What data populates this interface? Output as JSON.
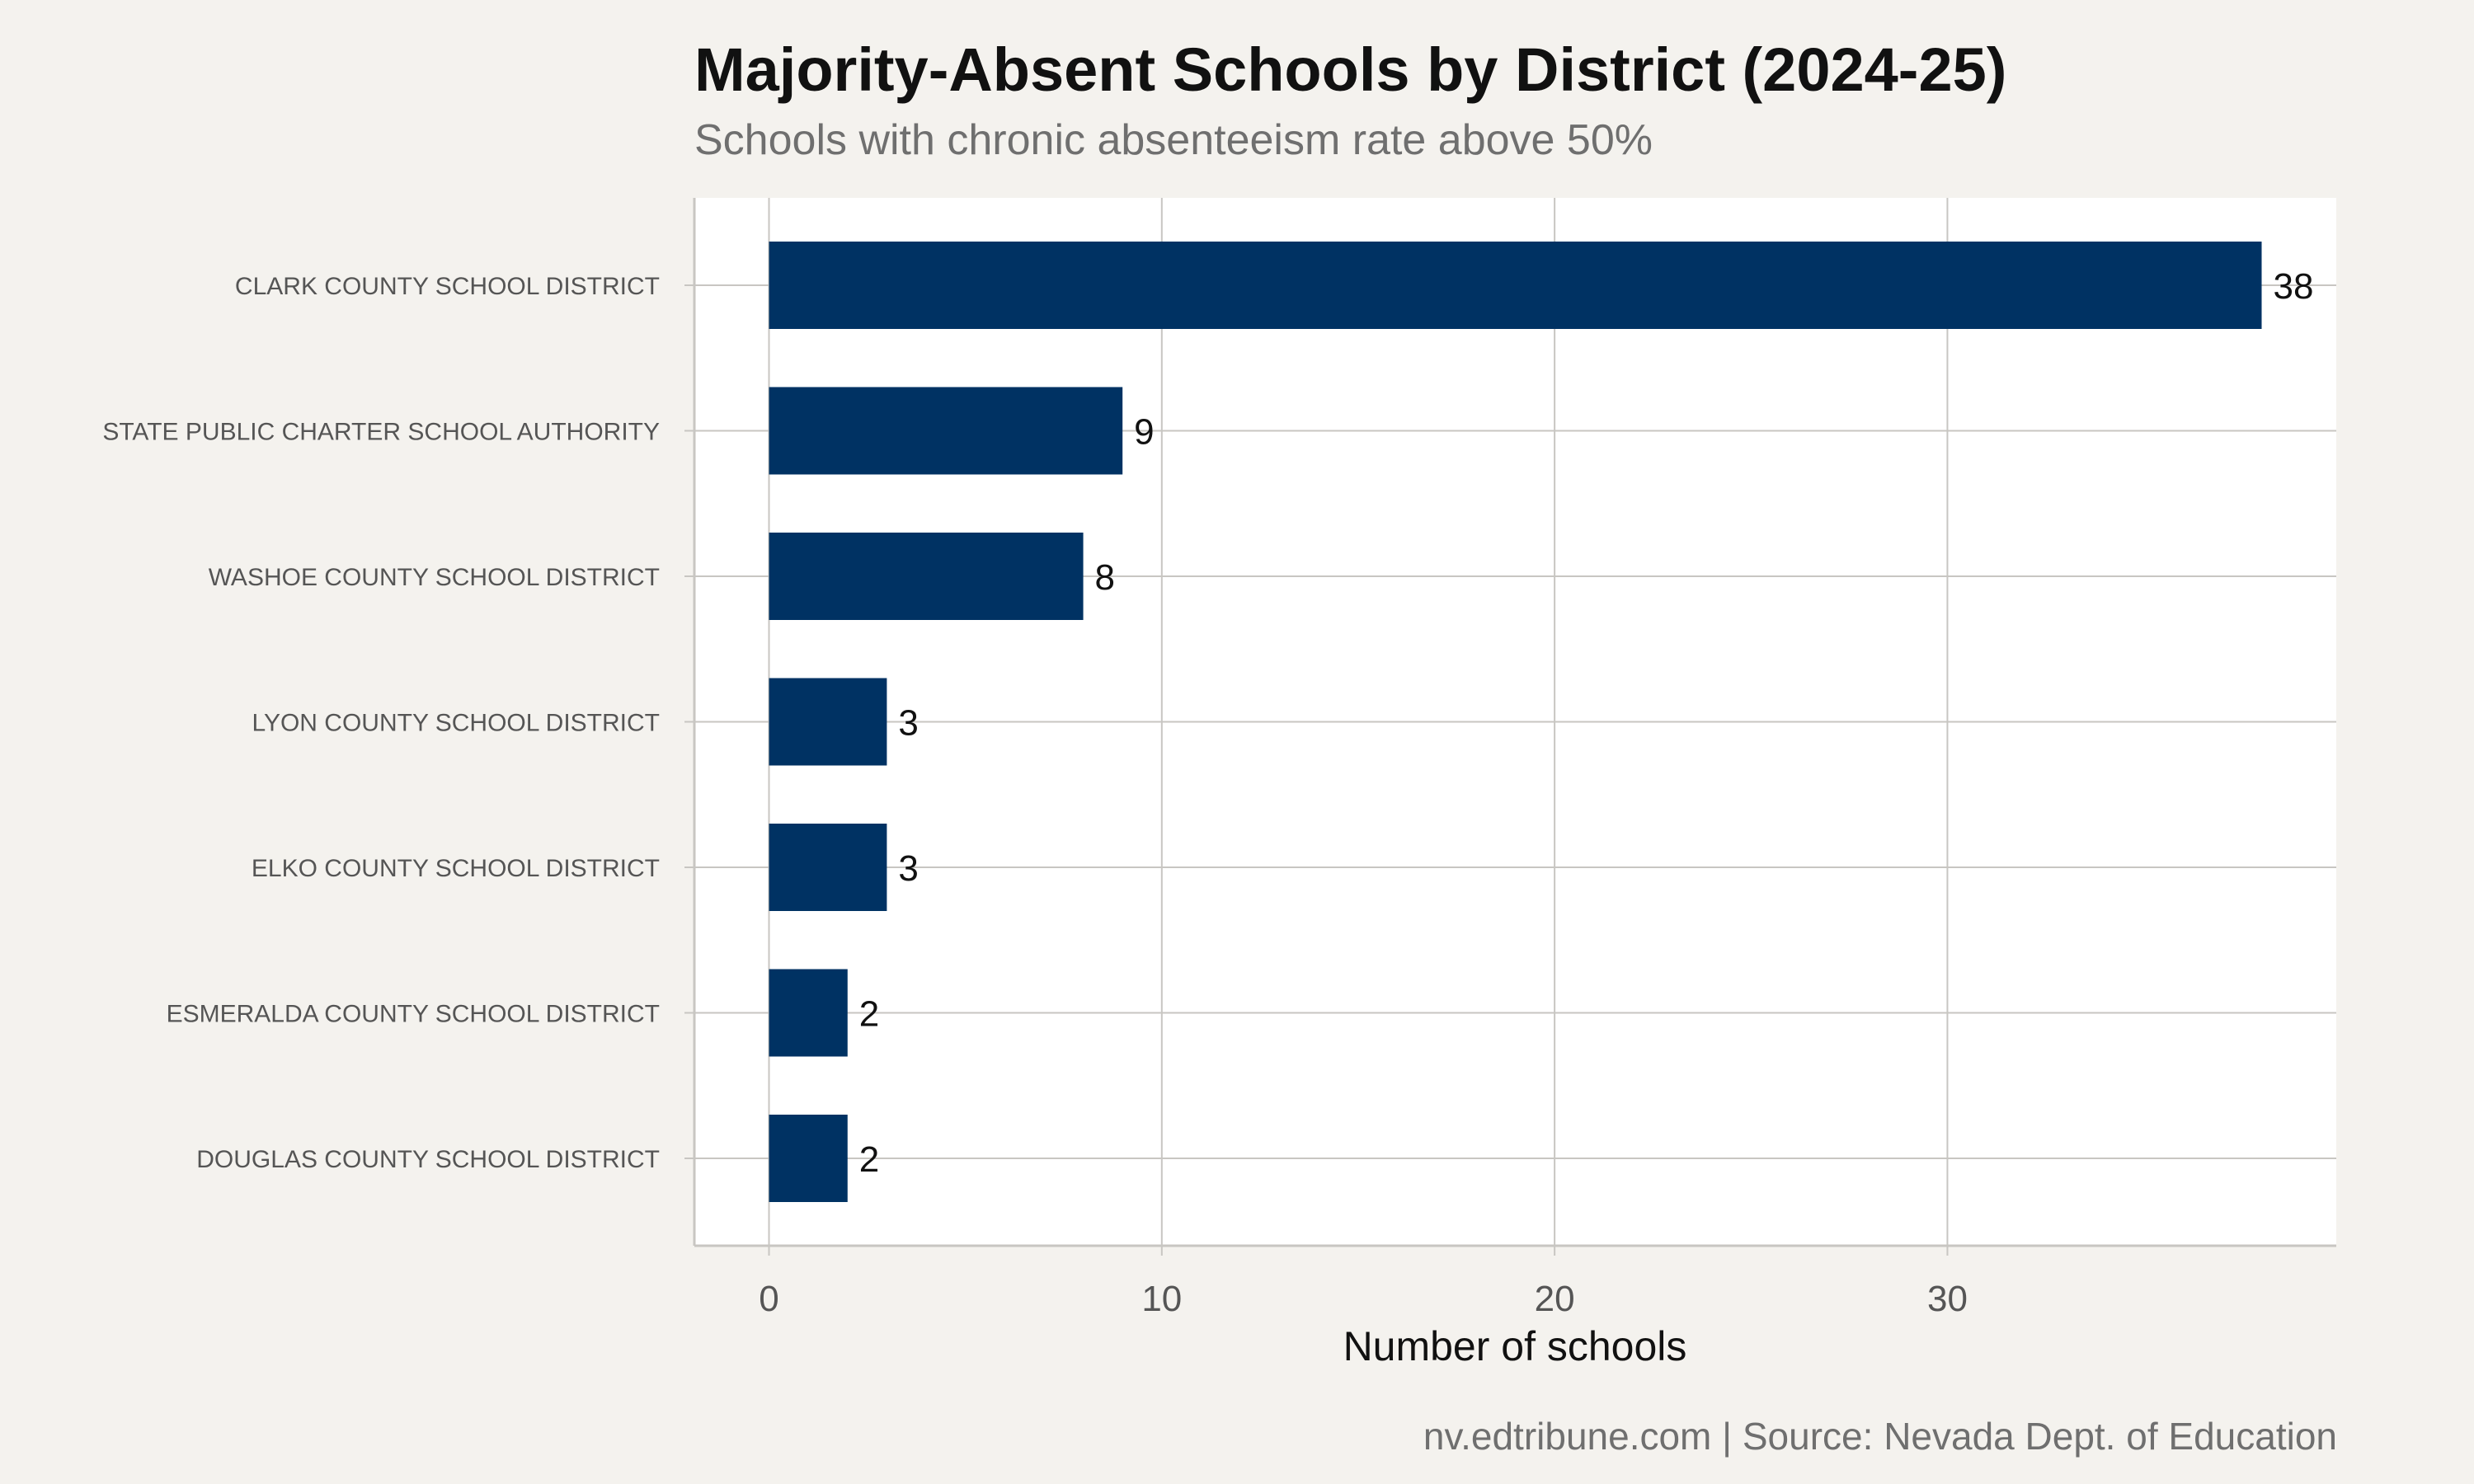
{
  "title": "Majority-Absent Schools by District (2024-25)",
  "subtitle": "Schools with chronic absenteeism rate above 50%",
  "caption": "nv.edtribune.com | Source: Nevada Dept. of Education",
  "colors": {
    "bar": "#003263",
    "panel": "#ffffff",
    "page_background": "#f4f2ee",
    "grid": "#c8c6c2"
  },
  "chart_data": {
    "type": "bar",
    "orientation": "horizontal",
    "title": "Majority-Absent Schools by District (2024-25)",
    "subtitle": "Schools with chronic absenteeism rate above 50%",
    "xlabel": "Number of schools",
    "ylabel": "",
    "xlim": [
      -1.9,
      39.9
    ],
    "xticks": [
      0,
      10,
      20,
      30
    ],
    "grid": true,
    "legend": "none",
    "categories": [
      "CLARK COUNTY SCHOOL DISTRICT",
      "STATE PUBLIC CHARTER SCHOOL AUTHORITY",
      "WASHOE COUNTY SCHOOL DISTRICT",
      "LYON COUNTY SCHOOL DISTRICT",
      "ELKO COUNTY SCHOOL DISTRICT",
      "ESMERALDA COUNTY SCHOOL DISTRICT",
      "DOUGLAS COUNTY SCHOOL DISTRICT"
    ],
    "values": [
      38,
      9,
      8,
      3,
      3,
      2,
      2
    ],
    "data_labels": [
      "38",
      "9",
      "8",
      "3",
      "3",
      "2",
      "2"
    ]
  }
}
